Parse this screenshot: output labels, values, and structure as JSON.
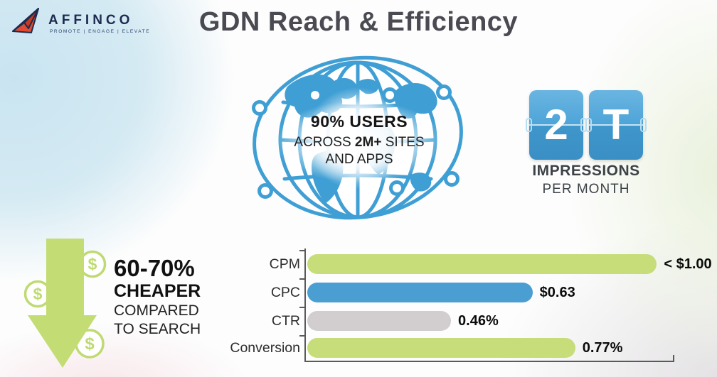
{
  "brand": {
    "name": "AFFINCO",
    "tagline": "PROMOTE | ENGAGE | ELEVATE"
  },
  "title": "GDN Reach & Efficiency",
  "globe": {
    "line1": "90% USERS",
    "line2_prefix": "ACROSS ",
    "line2_bold": "2M+",
    "line2_suffix": " SITES",
    "line3": "AND APPS"
  },
  "impressions": {
    "value": "2T",
    "digits": [
      "2",
      "T"
    ],
    "label1": "IMPRESSIONS",
    "label2": "PER MONTH"
  },
  "cheaper": {
    "line1": "60-70%",
    "line2": "CHEAPER",
    "line3": "COMPARED",
    "line4": "TO SEARCH"
  },
  "icons": {
    "dollar_coin": "$"
  },
  "chart_data": {
    "type": "bar",
    "orientation": "horizontal",
    "title": "",
    "categories": [
      "CPM",
      "CPC",
      "CTR",
      "Conversion"
    ],
    "values": [
      1.0,
      0.63,
      0.46,
      0.77
    ],
    "value_labels": [
      "< $1.00",
      "$0.63",
      "0.46%",
      "0.77%"
    ],
    "legend": "none",
    "grid": "off",
    "rows": [
      {
        "label": "CPM",
        "value_label": "< $1.00",
        "percent": 90,
        "color": "#c6dd7a"
      },
      {
        "label": "CPC",
        "value_label": "$0.63",
        "percent": 58,
        "color": "#4a9ed2"
      },
      {
        "label": "CTR",
        "value_label": "0.46%",
        "percent": 37,
        "color": "#d2cecf"
      },
      {
        "label": "Conversion",
        "value_label": "0.77%",
        "percent": 69,
        "color": "#c6dd7a"
      }
    ]
  },
  "colors": {
    "globe_blue": "#3f9fd4",
    "flip_card_blue": "#4da4d6",
    "bar_green": "#c6dd7a",
    "bar_blue": "#4a9ed2",
    "bar_gray": "#d2cecf",
    "arrow_green": "#c3dc74",
    "title_gray": "#4a4a52",
    "logo_navy": "#1d2b4f",
    "logo_red": "#e14b32",
    "bg_blue_blob": "#cde6f1",
    "bg_green_blob": "#e9f1dc",
    "bg_gray_blob": "#e4e2e4",
    "bg_pink_blob": "#f7e7ea"
  }
}
